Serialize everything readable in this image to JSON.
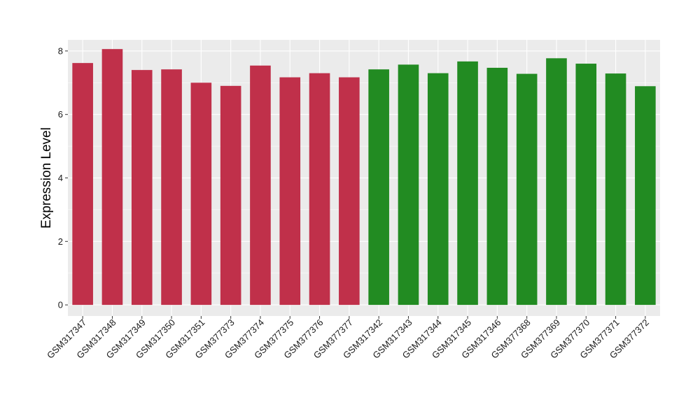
{
  "chart_data": {
    "type": "bar",
    "ylabel": "Expression Level",
    "xlabel": "",
    "ylim": [
      -0.35,
      8.35
    ],
    "yticks": [
      0,
      2,
      4,
      6,
      8
    ],
    "grid": true,
    "categories": [
      "GSM317347",
      "GSM317348",
      "GSM317349",
      "GSM317350",
      "GSM317351",
      "GSM377373",
      "GSM377374",
      "GSM377375",
      "GSM377376",
      "GSM377377",
      "GSM317342",
      "GSM317343",
      "GSM317344",
      "GSM317345",
      "GSM317346",
      "GSM377368",
      "GSM377369",
      "GSM377370",
      "GSM377371",
      "GSM377372"
    ],
    "values": [
      7.62,
      8.06,
      7.4,
      7.42,
      7.0,
      6.9,
      7.54,
      7.17,
      7.3,
      7.17,
      7.42,
      7.57,
      7.3,
      7.67,
      7.47,
      7.28,
      7.77,
      7.6,
      7.29,
      6.89
    ],
    "bar_colors": [
      "#c0304a",
      "#c0304a",
      "#c0304a",
      "#c0304a",
      "#c0304a",
      "#c0304a",
      "#c0304a",
      "#c0304a",
      "#c0304a",
      "#c0304a",
      "#228b22",
      "#228b22",
      "#228b22",
      "#228b22",
      "#228b22",
      "#228b22",
      "#228b22",
      "#228b22",
      "#228b22",
      "#228b22"
    ],
    "panel_background": "#ebebeb",
    "grid_color": "#ffffff"
  }
}
